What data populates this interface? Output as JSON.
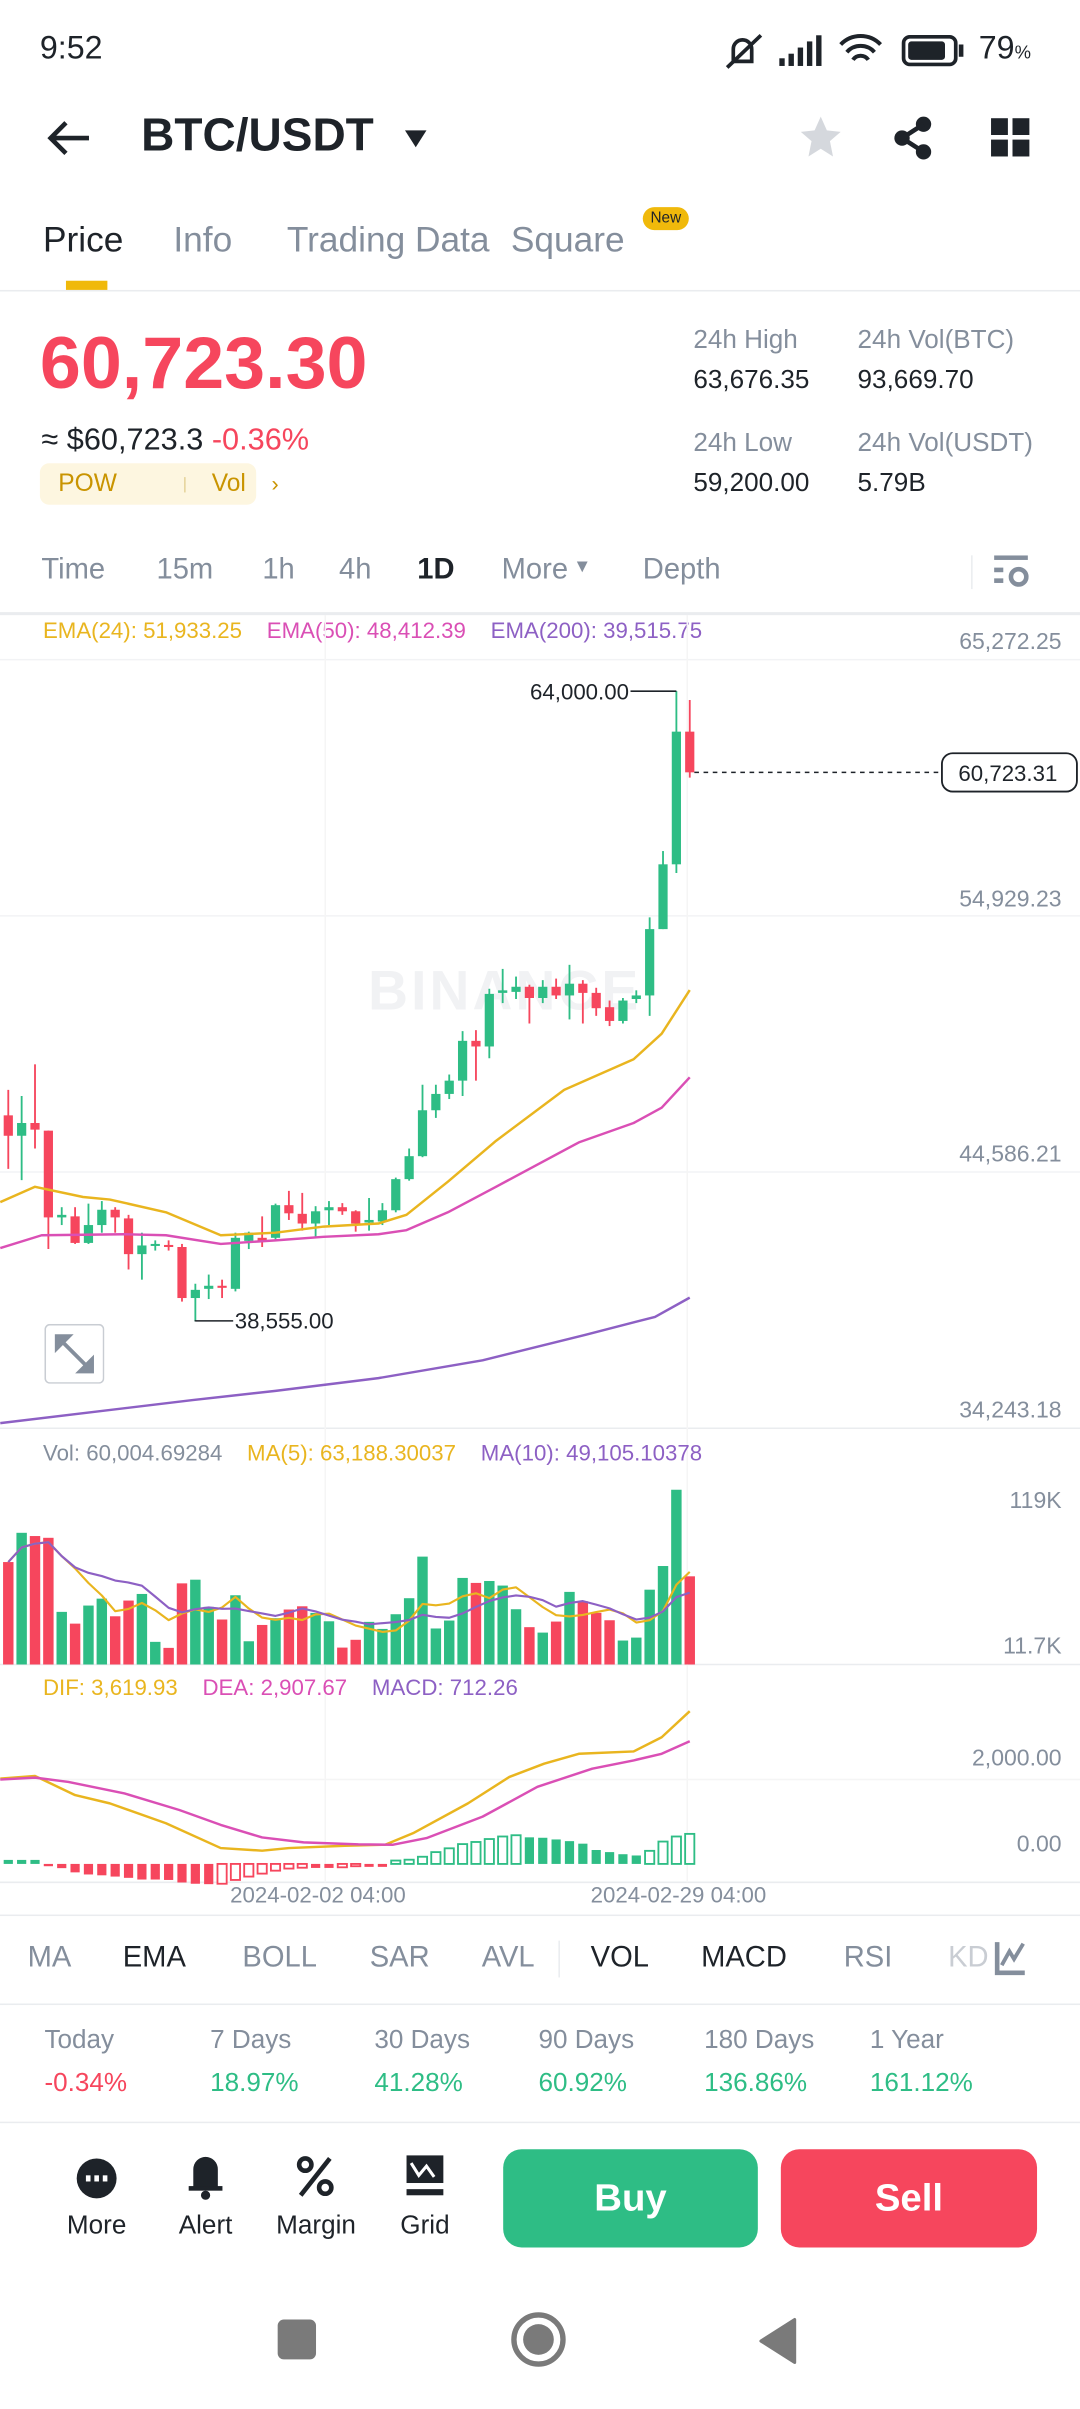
{
  "status_bar": {
    "time": "9:52",
    "battery": "79",
    "battery_unit": "%"
  },
  "header": {
    "title": "BTC/USDT"
  },
  "tabs": [
    {
      "label": "Price"
    },
    {
      "label": "Info"
    },
    {
      "label": "Trading Data"
    },
    {
      "label": "Square"
    }
  ],
  "new_badge": "New",
  "ticker": {
    "last_price": "60,723.30",
    "usd_price": "≈ $60,723.3",
    "change": "-0.36%",
    "tag1": "POW",
    "tag2": "Vol",
    "high_label": "24h High",
    "high": "63,676.35",
    "low_label": "24h Low",
    "low": "59,200.00",
    "vol_btc_label": "24h Vol(BTC)",
    "vol_btc": "93,669.70",
    "vol_usdt_label": "24h Vol(USDT)",
    "vol_usdt": "5.79B"
  },
  "intervals": [
    "Time",
    "15m",
    "1h",
    "4h",
    "1D",
    "More",
    "Depth"
  ],
  "ema_legend": {
    "ema24": "EMA(24): 51,933.25",
    "ema50": "EMA(50): 48,412.39",
    "ema200": "EMA(200): 39,515.75"
  },
  "price_axis": [
    "65,272.25",
    "54,929.23",
    "44,586.21",
    "34,243.18"
  ],
  "markers": {
    "high": "64,000.00",
    "low": "38,555.00",
    "current": "60,723.31"
  },
  "vol_legend": {
    "vol": "Vol: 60,004.69284",
    "ma5": "MA(5): 63,188.30037",
    "ma10": "MA(10): 49,105.10378"
  },
  "vol_axis": [
    "119K",
    "11.7K"
  ],
  "macd_legend": {
    "dif": "DIF: 3,619.93",
    "dea": "DEA: 2,907.67",
    "macd": "MACD: 712.26"
  },
  "macd_axis": [
    "2,000.00",
    "0.00"
  ],
  "date_axis": [
    "2024-02-02 04:00",
    "2024-02-29 04:00"
  ],
  "indicators": [
    "MA",
    "EMA",
    "BOLL",
    "SAR",
    "AVL",
    "VOL",
    "MACD",
    "RSI",
    "KD"
  ],
  "performance": [
    {
      "label": "Today",
      "value": "-0.34%"
    },
    {
      "label": "7 Days",
      "value": "18.97%"
    },
    {
      "label": "30 Days",
      "value": "41.28%"
    },
    {
      "label": "90 Days",
      "value": "60.92%"
    },
    {
      "label": "180 Days",
      "value": "136.86%"
    },
    {
      "label": "1 Year",
      "value": "161.12%"
    }
  ],
  "bottom_actions": [
    {
      "label": "More"
    },
    {
      "label": "Alert"
    },
    {
      "label": "Margin"
    },
    {
      "label": "Grid"
    }
  ],
  "buy_label": "Buy",
  "sell_label": "Sell",
  "watermark": "BINANCE",
  "colors": {
    "up": "#2EBD85",
    "down": "#F6465D",
    "accent": "#F0B90B",
    "ema24": "#E9B51F",
    "ema50": "#DA4FB5",
    "ema200": "#8D60C4"
  },
  "chart_data": {
    "type": "candlestick",
    "price_range": [
      34243.18,
      65272.25
    ],
    "candles": [
      [
        46875,
        47905,
        44712,
        46051
      ],
      [
        46051,
        47658,
        44259,
        46566
      ],
      [
        46566,
        48935,
        45536,
        46298
      ],
      [
        46257,
        46257,
        41478,
        42755
      ],
      [
        42755,
        43167,
        42446,
        42858
      ],
      [
        42797,
        43167,
        41684,
        41725
      ],
      [
        41725,
        43311,
        41684,
        42446
      ],
      [
        42446,
        43414,
        42137,
        43064
      ],
      [
        43064,
        43167,
        42137,
        42755
      ],
      [
        42714,
        42858,
        40653,
        41272
      ],
      [
        41272,
        42137,
        40241,
        41622
      ],
      [
        41602,
        41828,
        41416,
        41684
      ],
      [
        41643,
        41828,
        41416,
        41560
      ],
      [
        41560,
        41684,
        39356,
        39500
      ],
      [
        39500,
        40077,
        38555,
        39830
      ],
      [
        39871,
        40447,
        39459,
        39995
      ],
      [
        39995,
        40241,
        39500,
        39912
      ],
      [
        39871,
        42137,
        39768,
        41931
      ],
      [
        41808,
        42179,
        41478,
        42137
      ],
      [
        41931,
        42797,
        41560,
        41808
      ],
      [
        41931,
        43311,
        41828,
        43249
      ],
      [
        43249,
        43826,
        42652,
        42920
      ],
      [
        42899,
        43744,
        42220,
        42508
      ],
      [
        42508,
        43208,
        41931,
        43002
      ],
      [
        43043,
        43414,
        42446,
        43167
      ],
      [
        43167,
        43332,
        42858,
        43002
      ],
      [
        43002,
        43043,
        42179,
        42508
      ],
      [
        42549,
        43538,
        42220,
        42652
      ],
      [
        42590,
        43332,
        42446,
        43043
      ],
      [
        43043,
        44362,
        42961,
        44300
      ],
      [
        44300,
        45536,
        44238,
        45227
      ],
      [
        45227,
        48111,
        45186,
        47081
      ],
      [
        47081,
        48111,
        46772,
        47740
      ],
      [
        47740,
        48523,
        47534,
        48276
      ],
      [
        48276,
        50274,
        47658,
        49883
      ],
      [
        49883,
        50315,
        48276,
        49656
      ],
      [
        49656,
        51984,
        49182,
        51778
      ],
      [
        51819,
        52787,
        51407,
        51922
      ],
      [
        51860,
        52478,
        51572,
        52066
      ],
      [
        52066,
        52149,
        50583,
        51613
      ],
      [
        51613,
        52334,
        51407,
        52066
      ],
      [
        52066,
        52396,
        51572,
        51716
      ],
      [
        51716,
        52952,
        50748,
        52190
      ],
      [
        52190,
        52334,
        50583,
        51819
      ],
      [
        51819,
        52025,
        50892,
        51201
      ],
      [
        51242,
        51510,
        50480,
        50686
      ],
      [
        50686,
        51613,
        50583,
        51510
      ],
      [
        51572,
        51922,
        51407,
        51716
      ],
      [
        51716,
        54868,
        50892,
        54394
      ],
      [
        54394,
        57546,
        54394,
        57010
      ],
      [
        57010,
        64000,
        56660,
        62366
      ],
      [
        62366,
        63643,
        60512,
        60723.31
      ]
    ],
    "ema24": [
      [
        0.4,
        43373
      ],
      [
        3,
        43991
      ],
      [
        6.6,
        43579
      ],
      [
        8.6,
        43476
      ],
      [
        12.8,
        42961
      ],
      [
        16.9,
        42034
      ],
      [
        21,
        42137
      ],
      [
        24.6,
        42384
      ],
      [
        28.7,
        42508
      ],
      [
        30.8,
        42858
      ],
      [
        33.9,
        44197
      ],
      [
        37.5,
        45845
      ],
      [
        42.6,
        47905
      ],
      [
        47.8,
        49141
      ],
      [
        49.9,
        50171
      ],
      [
        52,
        51933
      ]
    ],
    "ema50": [
      [
        0.4,
        41519
      ],
      [
        3.5,
        42034
      ],
      [
        9.7,
        42075
      ],
      [
        12.8,
        42034
      ],
      [
        16.9,
        41684
      ],
      [
        21,
        41828
      ],
      [
        24.6,
        41972
      ],
      [
        28.7,
        42075
      ],
      [
        30.8,
        42240
      ],
      [
        33.9,
        42961
      ],
      [
        37.5,
        43991
      ],
      [
        43.7,
        45783
      ],
      [
        47.8,
        46566
      ],
      [
        49.9,
        47183
      ],
      [
        52,
        48412
      ]
    ],
    "ema200": [
      [
        0.4,
        34450
      ],
      [
        14.8,
        35380
      ],
      [
        21,
        35751
      ],
      [
        28.7,
        36266
      ],
      [
        36.5,
        36987
      ],
      [
        44.2,
        38017
      ],
      [
        49.4,
        38738
      ],
      [
        52,
        39516
      ]
    ],
    "volume_k": [
      69.7,
      89.6,
      87.4,
      86.2,
      35.8,
      27.8,
      40.1,
      44.8,
      32.8,
      43.5,
      48.0,
      15.4,
      11.3,
      55.2,
      57.7,
      39.2,
      30.6,
      47.1,
      15.8,
      26.9,
      31.5,
      37.4,
      39.6,
      35.1,
      29.4,
      11.5,
      16.8,
      29.0,
      24.2,
      34.2,
      45.1,
      73.4,
      24.5,
      29.9,
      58.9,
      55.5,
      56.8,
      53.7,
      37.6,
      25.4,
      21.7,
      29.2,
      49.4,
      43.0,
      35.1,
      30.1,
      16.3,
      18.3,
      50.9,
      67.0,
      118.9,
      60.0
    ],
    "volume_max_k": 119,
    "macd_hist": [
      95,
      95,
      95,
      -25,
      -100,
      -200,
      -250,
      -270,
      -300,
      -330,
      -370,
      -370,
      -380,
      -440,
      -470,
      -480,
      -470,
      -380,
      -300,
      -230,
      -160,
      -110,
      -90,
      -95,
      -95,
      -80,
      -30,
      -70,
      -70,
      80,
      100,
      170,
      280,
      370,
      470,
      520,
      590,
      650,
      680,
      630,
      620,
      580,
      540,
      480,
      330,
      280,
      230,
      200,
      310,
      530,
      650,
      712
    ],
    "dif": [
      [
        0.4,
        2023
      ],
      [
        3,
        2085
      ],
      [
        6,
        1631
      ],
      [
        8.6,
        1435
      ],
      [
        12.8,
        964
      ],
      [
        16.9,
        376
      ],
      [
        20,
        314
      ],
      [
        22,
        376
      ],
      [
        26.2,
        431
      ],
      [
        29.2,
        455
      ],
      [
        31.3,
        729
      ],
      [
        35.4,
        1435
      ],
      [
        38.5,
        2062
      ],
      [
        41.1,
        2376
      ],
      [
        43.7,
        2611
      ],
      [
        47.8,
        2666
      ],
      [
        49.9,
        3003
      ],
      [
        52,
        3620
      ]
    ],
    "dea": [
      [
        0.4,
        2000
      ],
      [
        3,
        2046
      ],
      [
        5.5,
        1944
      ],
      [
        9.7,
        1670
      ],
      [
        13.8,
        1278
      ],
      [
        16.9,
        925
      ],
      [
        20,
        627
      ],
      [
        23.1,
        510
      ],
      [
        27.2,
        463
      ],
      [
        29.8,
        455
      ],
      [
        32.3,
        612
      ],
      [
        36.5,
        1121
      ],
      [
        40.6,
        1827
      ],
      [
        44.7,
        2258
      ],
      [
        47.8,
        2454
      ],
      [
        49.9,
        2611
      ],
      [
        52,
        2908
      ]
    ]
  }
}
